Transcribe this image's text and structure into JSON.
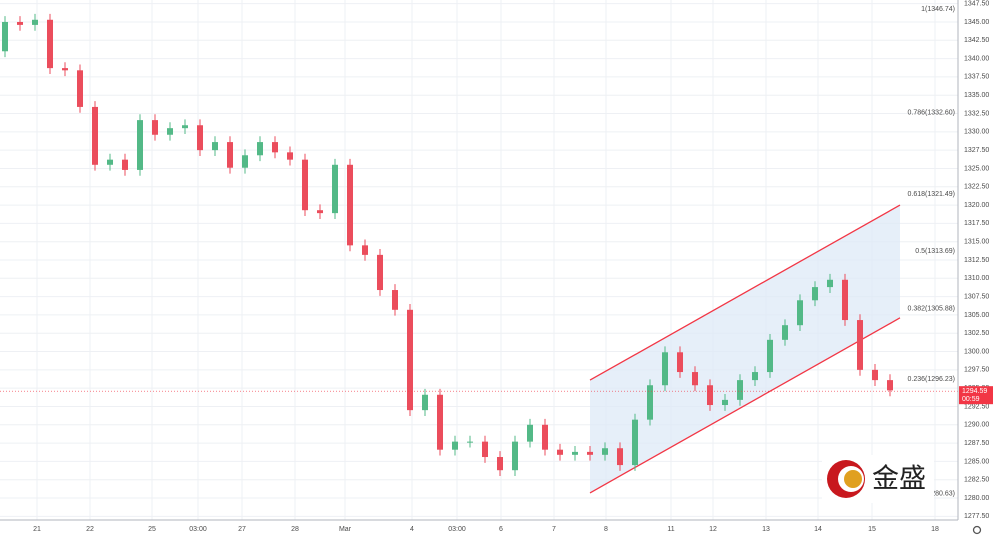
{
  "chart_data": {
    "type": "candlestick",
    "x": [
      5,
      20,
      35,
      50,
      65,
      80,
      95,
      110,
      125,
      140,
      155,
      170,
      185,
      200,
      215,
      230,
      245,
      260,
      275,
      290,
      305,
      320,
      335,
      350,
      365,
      380,
      395,
      410,
      425,
      440,
      455,
      470,
      485,
      500,
      515,
      530,
      545,
      560,
      575,
      590,
      605,
      620,
      635,
      650,
      665,
      680,
      695,
      710,
      725,
      740,
      755,
      770,
      785,
      800,
      815,
      830,
      845,
      860,
      875,
      890
    ],
    "open": [
      1341.0,
      1345.0,
      1344.6,
      1345.3,
      1338.7,
      1338.4,
      1333.4,
      1325.5,
      1326.2,
      1324.8,
      1331.6,
      1329.6,
      1330.5,
      1330.9,
      1327.5,
      1328.6,
      1325.1,
      1326.8,
      1328.6,
      1327.2,
      1326.2,
      1319.3,
      1318.9,
      1325.5,
      1314.5,
      1313.2,
      1308.4,
      1305.7,
      1292.0,
      1294.1,
      1286.6,
      1287.7,
      1287.7,
      1285.6,
      1283.8,
      1287.7,
      1290.0,
      1286.6,
      1285.9,
      1286.3,
      1285.9,
      1286.8,
      1284.5,
      1290.7,
      1295.4,
      1299.9,
      1297.2,
      1295.4,
      1292.7,
      1293.4,
      1296.1,
      1297.2,
      1301.6,
      1303.6,
      1307.0,
      1308.8,
      1309.8,
      1304.3,
      1297.5,
      1296.1
    ],
    "high": [
      1345.8,
      1345.8,
      1346.1,
      1346.1,
      1339.5,
      1339.2,
      1334.2,
      1327.0,
      1327.0,
      1332.4,
      1332.4,
      1331.3,
      1331.7,
      1331.7,
      1329.4,
      1329.4,
      1327.6,
      1329.4,
      1329.4,
      1328.0,
      1327.0,
      1320.1,
      1326.3,
      1326.3,
      1315.3,
      1314.0,
      1309.2,
      1306.5,
      1294.9,
      1294.9,
      1288.5,
      1288.5,
      1288.5,
      1286.4,
      1288.5,
      1290.8,
      1290.8,
      1287.4,
      1287.1,
      1287.1,
      1287.6,
      1287.6,
      1291.5,
      1296.2,
      1300.7,
      1300.7,
      1298.0,
      1296.2,
      1294.2,
      1296.9,
      1298.0,
      1302.4,
      1304.4,
      1307.8,
      1309.6,
      1310.6,
      1310.6,
      1305.1,
      1298.3,
      1296.9
    ],
    "low": [
      1340.2,
      1343.8,
      1343.8,
      1337.9,
      1337.6,
      1332.6,
      1324.7,
      1324.7,
      1324.0,
      1324.0,
      1328.8,
      1328.8,
      1329.7,
      1326.7,
      1326.7,
      1324.3,
      1324.3,
      1326.0,
      1326.4,
      1325.4,
      1318.5,
      1318.1,
      1318.1,
      1313.7,
      1312.4,
      1307.6,
      1304.9,
      1291.2,
      1291.2,
      1285.8,
      1285.8,
      1286.9,
      1284.8,
      1283.0,
      1283.0,
      1286.9,
      1285.8,
      1285.1,
      1285.1,
      1285.1,
      1285.1,
      1283.7,
      1283.7,
      1289.9,
      1294.6,
      1296.4,
      1294.6,
      1291.9,
      1291.9,
      1292.6,
      1295.3,
      1296.4,
      1300.8,
      1302.8,
      1306.2,
      1308.0,
      1303.5,
      1296.7,
      1295.3,
      1293.9
    ],
    "close": [
      1345.0,
      1344.6,
      1345.3,
      1338.7,
      1338.4,
      1333.4,
      1325.5,
      1326.2,
      1324.8,
      1331.6,
      1329.6,
      1330.5,
      1330.9,
      1327.5,
      1328.6,
      1325.1,
      1326.8,
      1328.6,
      1327.2,
      1326.2,
      1319.3,
      1318.9,
      1325.5,
      1314.5,
      1313.2,
      1308.4,
      1305.7,
      1292.0,
      1294.1,
      1286.6,
      1287.7,
      1287.7,
      1285.6,
      1283.8,
      1287.7,
      1290.0,
      1286.6,
      1285.9,
      1286.3,
      1285.9,
      1286.8,
      1284.5,
      1290.7,
      1295.4,
      1299.9,
      1297.2,
      1295.4,
      1292.7,
      1293.4,
      1296.1,
      1297.2,
      1301.6,
      1303.6,
      1307.0,
      1308.8,
      1309.8,
      1304.3,
      1297.5,
      1296.1,
      1294.7
    ],
    "up_color": "#53b987",
    "down_color": "#eb4d5c",
    "xlim": [
      0,
      958
    ],
    "ylim": [
      1277,
      1348
    ],
    "xticks": [
      {
        "value": 37,
        "label": "21"
      },
      {
        "value": 90,
        "label": "22"
      },
      {
        "value": 152,
        "label": "25"
      },
      {
        "value": 198,
        "label": "03:00"
      },
      {
        "value": 242,
        "label": "27"
      },
      {
        "value": 295,
        "label": "28"
      },
      {
        "value": 345,
        "label": "Mar"
      },
      {
        "value": 412,
        "label": "4"
      },
      {
        "value": 457,
        "label": "03:00"
      },
      {
        "value": 501,
        "label": "6"
      },
      {
        "value": 554,
        "label": "7"
      },
      {
        "value": 606,
        "label": "8"
      },
      {
        "value": 671,
        "label": "11"
      },
      {
        "value": 713,
        "label": "12"
      },
      {
        "value": 766,
        "label": "13"
      },
      {
        "value": 818,
        "label": "14"
      },
      {
        "value": 872,
        "label": "15"
      },
      {
        "value": 935,
        "label": "18"
      }
    ],
    "yticks": [
      {
        "value": 1277.5,
        "label": "1277.50"
      },
      {
        "value": 1280,
        "label": "1280.00"
      },
      {
        "value": 1282.5,
        "label": "1282.50"
      },
      {
        "value": 1285,
        "label": "1285.00"
      },
      {
        "value": 1287.5,
        "label": "1287.50"
      },
      {
        "value": 1290,
        "label": "1290.00"
      },
      {
        "value": 1292.5,
        "label": "1292.50"
      },
      {
        "value": 1295,
        "label": "1295.00"
      },
      {
        "value": 1297.5,
        "label": "1297.50"
      },
      {
        "value": 1300,
        "label": "1300.00"
      },
      {
        "value": 1302.5,
        "label": "1302.50"
      },
      {
        "value": 1305,
        "label": "1305.00"
      },
      {
        "value": 1307.5,
        "label": "1307.50"
      },
      {
        "value": 1310,
        "label": "1310.00"
      },
      {
        "value": 1312.5,
        "label": "1312.50"
      },
      {
        "value": 1315,
        "label": "1315.00"
      },
      {
        "value": 1317.5,
        "label": "1317.50"
      },
      {
        "value": 1320,
        "label": "1320.00"
      },
      {
        "value": 1322.5,
        "label": "1322.50"
      },
      {
        "value": 1325,
        "label": "1325.00"
      },
      {
        "value": 1327.5,
        "label": "1327.50"
      },
      {
        "value": 1330,
        "label": "1330.00"
      },
      {
        "value": 1332.5,
        "label": "1332.50"
      },
      {
        "value": 1335,
        "label": "1335.00"
      },
      {
        "value": 1337.5,
        "label": "1337.50"
      },
      {
        "value": 1340,
        "label": "1340.00"
      },
      {
        "value": 1342.5,
        "label": "1342.50"
      },
      {
        "value": 1345,
        "label": "1345.00"
      },
      {
        "value": 1347.5,
        "label": "1347.50"
      }
    ],
    "grid": true,
    "fib_levels": [
      {
        "value": 1346.74,
        "label": "1(1346.74)"
      },
      {
        "value": 1332.6,
        "label": "0.786(1332.60)"
      },
      {
        "value": 1321.49,
        "label": "0.618(1321.49)"
      },
      {
        "value": 1313.69,
        "label": "0.5(1313.69)"
      },
      {
        "value": 1305.88,
        "label": "0.382(1305.88)"
      },
      {
        "value": 1296.23,
        "label": "0.236(1296.23)"
      },
      {
        "value": 1280.63,
        "label": "0(1280.63)"
      }
    ],
    "channel": {
      "x": [
        590,
        900
      ],
      "upper": [
        1296.1,
        1320.0
      ],
      "lower": [
        1280.7,
        1304.6
      ],
      "color": "#f23645",
      "fill": "#dde9f7"
    },
    "last_price": 1294.59,
    "countdown": "00:59",
    "last_price_color": "#f23645"
  },
  "watermark": {
    "text": "金盛"
  }
}
